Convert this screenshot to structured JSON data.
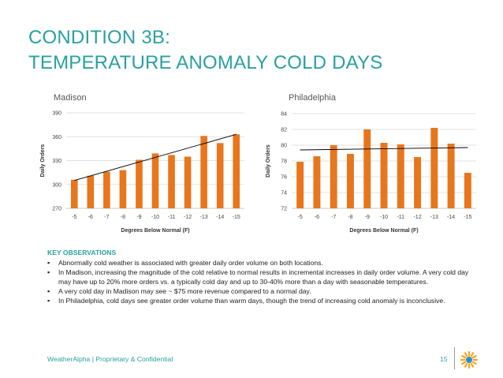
{
  "title_lines": [
    "CONDITION 3B:",
    "TEMPERATURE ANOMALY COLD DAYS"
  ],
  "chart_data": [
    {
      "type": "bar",
      "title": "Madison",
      "xlabel": "Degrees Below Normal (F)",
      "ylabel": "Daily Orders",
      "categories": [
        "-5",
        "-6",
        "-7",
        "-8",
        "-9",
        "-10",
        "-11",
        "-12",
        "-13",
        "-14",
        "-15"
      ],
      "values": [
        306,
        311,
        316,
        318,
        331,
        339,
        337,
        335,
        361,
        352,
        363
      ],
      "ylim": [
        270,
        390
      ],
      "yticks": [
        270,
        300,
        330,
        360,
        390
      ],
      "trendline": [
        305,
        363
      ],
      "bar_color": "#e8761c",
      "grid": true
    },
    {
      "type": "bar",
      "title": "Philadelphia",
      "xlabel": "Degrees Below Normal (F)",
      "ylabel": "Daily Orders",
      "categories": [
        "-5",
        "-6",
        "-7",
        "-8",
        "-9",
        "-10",
        "-11",
        "-12",
        "-13",
        "-14",
        "-15"
      ],
      "values": [
        77.9,
        78.6,
        80.0,
        78.9,
        82.0,
        80.3,
        80.1,
        78.5,
        82.2,
        80.2,
        76.5
      ],
      "ylim": [
        72,
        84
      ],
      "yticks": [
        72,
        74,
        76,
        78,
        80,
        82,
        84
      ],
      "trendline": [
        79.4,
        79.7
      ],
      "bar_color": "#e8761c",
      "grid": true
    }
  ],
  "observations": {
    "heading": "KEY OBSERVATIONS",
    "items": [
      "Abnormally cold weather is associated with greater daily order volume on both locations.",
      "In Madison,  increasing the magnitude of the cold relative to normal results in incremental increases in daily order volume. A very cold day may have up to 20% more orders vs. a typically cold day and up to 30-40% more than a day with seasonable temperatures.",
      "A very cold day in Madison may see ~ $75 more revenue compared to a normal day.",
      "In Philadelphia, cold days see greater order volume than warm days, though the trend of increasing cold anomaly is inconclusive."
    ]
  },
  "footer": {
    "text": "WeatherAlpha | Proprietary & Confidential",
    "page_number": "15"
  },
  "colors": {
    "accent": "#2aa0a0",
    "bar": "#e8761c",
    "logo_orange": "#f5a623",
    "logo_blue": "#2a8fc9"
  }
}
